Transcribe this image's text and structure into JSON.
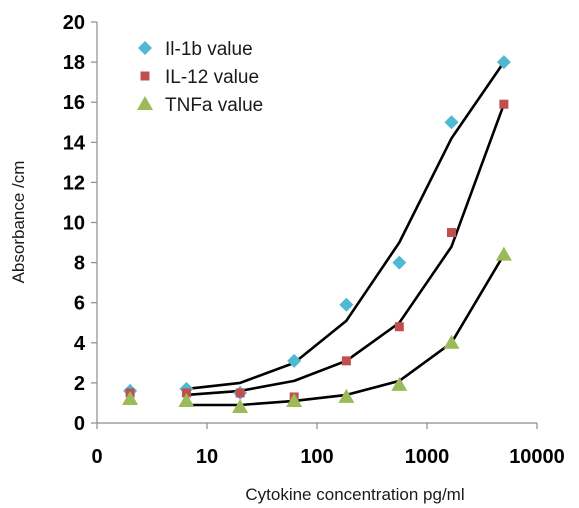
{
  "chart_data": {
    "type": "scatter",
    "title": "",
    "xlabel": "Cytokine concentration pg/ml",
    "ylabel": "Absorbance /cm",
    "x_scale": "log",
    "xlim": [
      1,
      10000
    ],
    "ylim": [
      0,
      20
    ],
    "x_ticks": [
      1,
      10,
      100,
      1000,
      10000
    ],
    "x_tick_labels": [
      "0",
      "10",
      "100",
      "1000",
      "10000"
    ],
    "y_ticks": [
      0,
      2,
      4,
      6,
      8,
      10,
      12,
      14,
      16,
      18,
      20
    ],
    "y_tick_labels": [
      "0",
      "2",
      "4",
      "6",
      "8",
      "10",
      "12",
      "14",
      "16",
      "18",
      "20"
    ],
    "grid": false,
    "legend_position": "top-left",
    "series": [
      {
        "name": "Il-1b value",
        "marker": "diamond",
        "color": "#4fb8d3",
        "x": [
          2,
          6.5,
          20,
          62,
          185,
          560,
          1670,
          5000
        ],
        "y": [
          1.6,
          1.7,
          1.5,
          3.1,
          5.9,
          8.0,
          15.0,
          18.0
        ],
        "fit_y": [
          null,
          1.7,
          2.0,
          3.0,
          5.1,
          9.0,
          14.2,
          18.0
        ]
      },
      {
        "name": "IL-12 value",
        "marker": "square",
        "color": "#c0504d",
        "x": [
          2,
          6.5,
          20,
          62,
          185,
          560,
          1670,
          5000
        ],
        "y": [
          1.5,
          1.5,
          1.5,
          1.3,
          3.1,
          4.8,
          9.5,
          15.9
        ],
        "fit_y": [
          null,
          1.4,
          1.6,
          2.1,
          3.1,
          5.0,
          8.8,
          15.9
        ]
      },
      {
        "name": "TNFa value",
        "marker": "triangle",
        "color": "#9bbb59",
        "x": [
          2,
          6.5,
          20,
          62,
          185,
          560,
          1670,
          5000
        ],
        "y": [
          1.2,
          1.1,
          0.8,
          1.1,
          1.3,
          1.9,
          4.0,
          8.4
        ],
        "fit_y": [
          null,
          0.9,
          0.9,
          1.1,
          1.4,
          2.1,
          4.0,
          8.4
        ]
      }
    ],
    "fit_line_color": "#000000"
  }
}
